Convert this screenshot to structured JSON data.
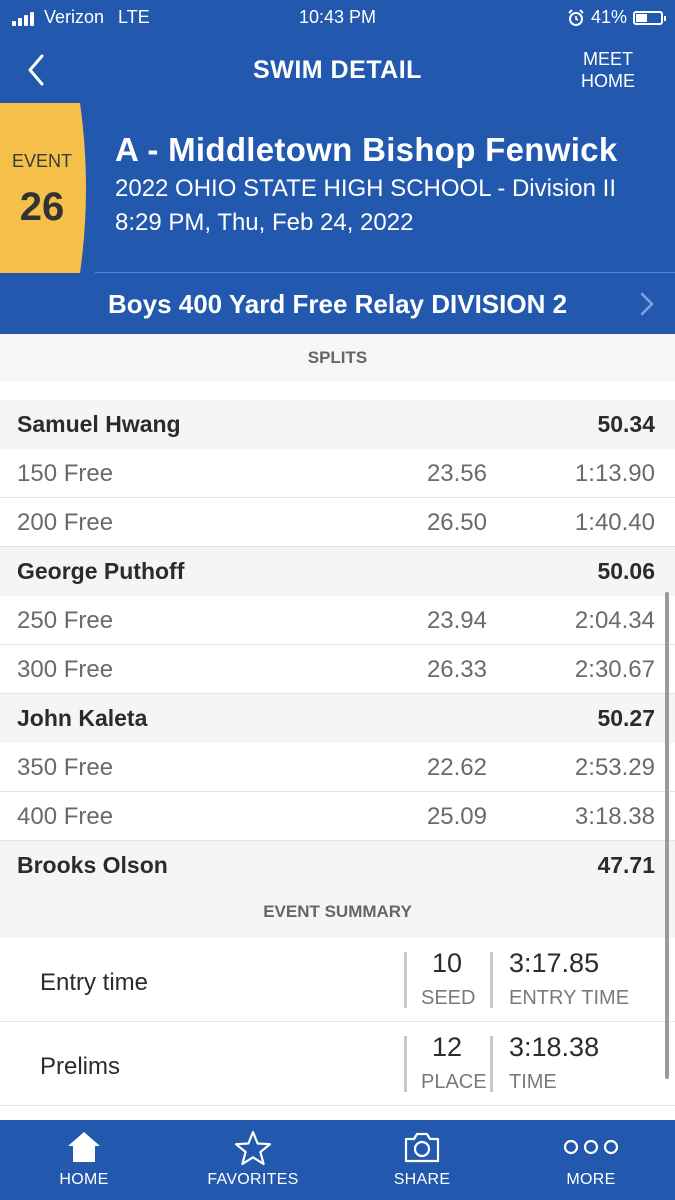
{
  "status_bar": {
    "carrier": "Verizon",
    "network": "LTE",
    "time": "10:43 PM",
    "battery": "41%"
  },
  "nav": {
    "title": "SWIM DETAIL",
    "meet_home_line1": "MEET",
    "meet_home_line2": "HOME"
  },
  "event": {
    "label": "EVENT",
    "number": "26",
    "team": "A - Middletown Bishop Fenwick",
    "meet": "2022 OHIO STATE HIGH SCHOOL - Division II",
    "datetime": "8:29 PM, Thu, Feb 24, 2022",
    "event_name": "Boys 400 Yard Free Relay DIVISION 2"
  },
  "splits": {
    "header": "SPLITS",
    "rows": [
      {
        "type": "swimmer",
        "name": "Samuel Hwang",
        "split": "",
        "cumulative": "50.34"
      },
      {
        "type": "split",
        "name": "150 Free",
        "split": "23.56",
        "cumulative": "1:13.90"
      },
      {
        "type": "split",
        "name": "200 Free",
        "split": "26.50",
        "cumulative": "1:40.40"
      },
      {
        "type": "swimmer",
        "name": "George Puthoff",
        "split": "",
        "cumulative": "50.06"
      },
      {
        "type": "split",
        "name": "250 Free",
        "split": "23.94",
        "cumulative": "2:04.34"
      },
      {
        "type": "split",
        "name": "300 Free",
        "split": "26.33",
        "cumulative": "2:30.67"
      },
      {
        "type": "swimmer",
        "name": "John Kaleta",
        "split": "",
        "cumulative": "50.27"
      },
      {
        "type": "split",
        "name": "350 Free",
        "split": "22.62",
        "cumulative": "2:53.29"
      },
      {
        "type": "split",
        "name": "400 Free",
        "split": "25.09",
        "cumulative": "3:18.38"
      },
      {
        "type": "swimmer",
        "name": "Brooks Olson",
        "split": "",
        "cumulative": "47.71"
      }
    ]
  },
  "summary": {
    "header": "EVENT SUMMARY",
    "rows": [
      {
        "label": "Entry time",
        "rank": "10",
        "rank_caption": "SEED",
        "time": "3:17.85",
        "time_caption": "ENTRY TIME"
      },
      {
        "label": "Prelims",
        "rank": "12",
        "rank_caption": "PLACE",
        "time": "3:18.38",
        "time_caption": "TIME"
      }
    ]
  },
  "tabs": [
    {
      "label": "HOME",
      "icon": "home-icon"
    },
    {
      "label": "FAVORITES",
      "icon": "star-icon"
    },
    {
      "label": "SHARE",
      "icon": "camera-icon"
    },
    {
      "label": "MORE",
      "icon": "more-icon"
    }
  ],
  "colors": {
    "primary_blue": "#2258ad",
    "event_badge_yellow": "#f5c04a",
    "section_bg": "#f5f5f5"
  }
}
